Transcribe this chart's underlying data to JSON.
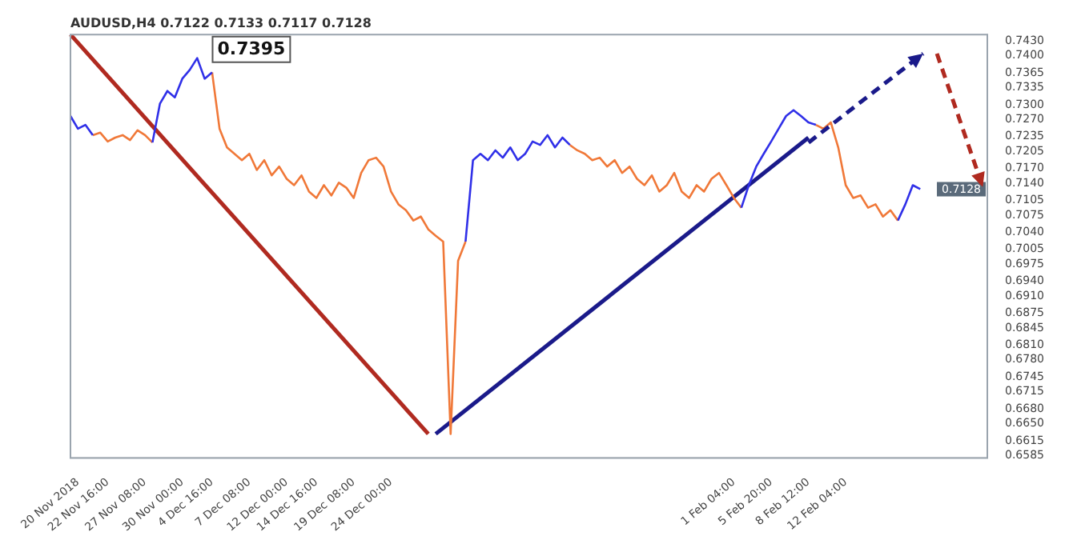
{
  "chart_data": {
    "type": "line",
    "title": "AUDUSD,H4 0.7122 0.7133 0.7117 0.7128",
    "categories": [
      null,
      "20 Nov 2018",
      null,
      null,
      null,
      "22 Nov 16:00",
      null,
      null,
      null,
      null,
      "27 Nov 08:00",
      null,
      null,
      null,
      null,
      "30 Nov 00:00",
      null,
      null,
      null,
      "4 Dec 16:00",
      null,
      null,
      null,
      null,
      "7 Dec 08:00",
      null,
      null,
      null,
      null,
      "12 Dec 00:00",
      null,
      null,
      null,
      "14 Dec 16:00",
      null,
      null,
      null,
      null,
      "19 Dec 08:00",
      null,
      null,
      null,
      null,
      "24 Dec 00:00",
      null,
      null,
      null,
      null,
      null,
      null,
      null,
      null,
      null,
      null,
      null,
      null,
      null,
      null,
      null,
      null,
      null,
      null,
      null,
      null,
      null,
      null,
      null,
      null,
      null,
      null,
      null,
      null,
      null,
      null,
      null,
      null,
      null,
      null,
      null,
      null,
      null,
      null,
      null,
      null,
      null,
      null,
      null,
      null,
      null,
      "1 Feb 04:00",
      null,
      null,
      null,
      null,
      "5 Feb 20:00",
      null,
      null,
      null,
      null,
      "8 Feb 12:00",
      null,
      null,
      null,
      null,
      "12 Feb 04:00",
      null,
      null,
      null,
      null,
      null,
      null,
      null,
      null,
      null,
      null,
      null,
      null,
      null,
      null,
      null,
      null,
      null,
      null,
      null
    ],
    "series": [
      {
        "color": "#3030e8",
        "values": [
          0.7277,
          0.7251,
          0.7259,
          0.7238,
          null,
          null,
          null,
          null,
          null,
          null,
          null,
          0.7223,
          0.7302,
          0.7328,
          0.7315,
          0.7353,
          0.7371,
          0.7395,
          0.7353,
          0.7366,
          null,
          null,
          null,
          null,
          null,
          null,
          null,
          null,
          null,
          null,
          null,
          null,
          null,
          null,
          null,
          null,
          null,
          null,
          null,
          null,
          null,
          null,
          null,
          null,
          null,
          null,
          null,
          null,
          null,
          null,
          null,
          null,
          null,
          0.7021,
          0.7187,
          0.72,
          0.7187,
          0.7207,
          0.7192,
          0.7213,
          0.7187,
          0.72,
          0.7225,
          0.7218,
          0.7238,
          0.7213,
          0.7233,
          0.7218,
          null,
          null,
          null,
          null,
          null,
          null,
          null,
          null,
          null,
          null,
          null,
          null,
          null,
          null,
          null,
          null,
          null,
          null,
          null,
          null,
          null,
          null,
          0.709,
          0.7136,
          0.7174,
          0.72,
          0.7225,
          0.7251,
          0.7277,
          0.7289,
          0.7277,
          0.7264,
          0.7259,
          null,
          null,
          null,
          null,
          null,
          null,
          null,
          null,
          null,
          null,
          0.7064,
          0.7097,
          0.7136,
          0.7128,
          null,
          null,
          null,
          null,
          null,
          null,
          null,
          null,
          null
        ]
      },
      {
        "color": "#f07838",
        "values": [
          null,
          null,
          null,
          0.7238,
          0.7243,
          0.7225,
          0.7233,
          0.7238,
          0.7228,
          0.7248,
          0.7238,
          0.7223,
          null,
          null,
          null,
          null,
          null,
          null,
          null,
          0.7366,
          0.7251,
          0.7213,
          0.72,
          0.7187,
          0.72,
          0.7167,
          0.7187,
          0.7156,
          0.7174,
          0.7149,
          0.7136,
          0.7156,
          0.7123,
          0.711,
          0.7136,
          0.7115,
          0.7141,
          0.7131,
          0.711,
          0.7161,
          0.7187,
          0.7192,
          0.7174,
          0.7123,
          0.7097,
          0.7085,
          0.7064,
          0.7072,
          0.7046,
          0.7033,
          0.7021,
          0.6629,
          0.6982,
          0.7021,
          null,
          null,
          null,
          null,
          null,
          null,
          null,
          null,
          null,
          null,
          null,
          null,
          null,
          0.7218,
          0.7207,
          0.72,
          0.7187,
          0.7192,
          0.7174,
          0.7187,
          0.7161,
          0.7174,
          0.7149,
          0.7136,
          0.7156,
          0.7123,
          0.7136,
          0.7161,
          0.7123,
          0.711,
          0.7136,
          0.7123,
          0.7149,
          0.7161,
          0.7136,
          0.711,
          0.709,
          null,
          null,
          null,
          null,
          null,
          null,
          null,
          null,
          null,
          0.7259,
          0.7251,
          0.7264,
          0.7213,
          0.7136,
          0.711,
          0.7115,
          0.709,
          0.7097,
          0.7072,
          0.7085,
          0.7064,
          null,
          null,
          null,
          null,
          null,
          null,
          null,
          null,
          null,
          null,
          null,
          null
        ]
      },
      {
        "color": "#b02a20",
        "values": [
          0.7443,
          null,
          null,
          null,
          null,
          null,
          null,
          null,
          null,
          null,
          null,
          null,
          null,
          null,
          null,
          null,
          null,
          null,
          null,
          null,
          null,
          null,
          null,
          null,
          null,
          null,
          null,
          null,
          null,
          null,
          null,
          null,
          null,
          null,
          null,
          null,
          null,
          null,
          null,
          null,
          null,
          null,
          null,
          null,
          null,
          null,
          null,
          null,
          0.6629,
          null,
          null,
          null,
          null,
          null,
          null,
          null,
          null,
          null,
          null,
          null,
          null,
          null,
          null,
          null,
          null,
          null,
          null,
          null,
          null,
          null,
          null,
          null,
          null,
          null,
          null,
          null,
          null,
          null,
          null,
          null,
          null,
          null,
          null,
          null,
          null,
          null,
          null,
          null,
          null,
          null,
          null,
          null,
          null,
          null,
          null,
          null,
          null,
          null,
          null,
          null,
          null,
          null,
          null,
          null,
          null,
          null,
          null,
          null,
          null,
          null,
          null,
          null,
          null,
          null,
          null,
          null,
          null,
          null,
          null,
          null,
          null,
          null,
          null,
          null
        ]
      },
      {
        "color": "#1a1a8a",
        "values": [
          null,
          null,
          null,
          null,
          null,
          null,
          null,
          null,
          null,
          null,
          null,
          null,
          null,
          null,
          null,
          null,
          null,
          null,
          null,
          null,
          null,
          null,
          null,
          null,
          null,
          null,
          null,
          null,
          null,
          null,
          null,
          null,
          null,
          null,
          null,
          null,
          null,
          null,
          null,
          null,
          null,
          null,
          null,
          null,
          null,
          null,
          null,
          null,
          null,
          0.6629,
          null,
          null,
          null,
          null,
          null,
          null,
          null,
          null,
          null,
          null,
          null,
          null,
          null,
          null,
          null,
          null,
          null,
          null,
          null,
          null,
          null,
          null,
          null,
          null,
          null,
          null,
          null,
          null,
          null,
          null,
          null,
          null,
          null,
          null,
          null,
          null,
          null,
          null,
          null,
          null,
          null,
          null,
          null,
          null,
          null,
          null,
          null,
          null,
          null,
          0.7233,
          null,
          null,
          null,
          null,
          null,
          null,
          null,
          null,
          null,
          null,
          null,
          null,
          null,
          null,
          null,
          null,
          null,
          null,
          null,
          null,
          null,
          null,
          null,
          null
        ]
      }
    ],
    "ylim": [
      0.658,
      0.7443
    ],
    "yticks": [
      {
        "value": 0.743,
        "label": "0.7430"
      },
      {
        "value": 0.74,
        "label": "0.7400"
      },
      0.7365,
      0.7335,
      {
        "value": 0.73,
        "label": "0.7300"
      },
      {
        "value": 0.727,
        "label": "0.7270"
      },
      0.7235,
      0.7205,
      {
        "value": 0.717,
        "label": "0.7170"
      },
      {
        "value": 0.714,
        "label": "0.7140"
      },
      0.7105,
      0.7075,
      {
        "value": 0.704,
        "label": "0.7040"
      },
      0.7005,
      0.6975,
      {
        "value": 0.694,
        "label": "0.6940"
      },
      {
        "value": 0.691,
        "label": "0.6910"
      },
      0.6875,
      0.6845,
      {
        "value": 0.681,
        "label": "0.6810"
      },
      {
        "value": 0.678,
        "label": "0.6780"
      },
      0.6745,
      0.6715,
      {
        "value": 0.668,
        "label": "0.6680"
      },
      {
        "value": 0.665,
        "label": "0.6650"
      },
      0.6615,
      0.6585
    ],
    "annotations": [
      "0.7395",
      "0.7128"
    ],
    "grid": false,
    "legend": false
  }
}
